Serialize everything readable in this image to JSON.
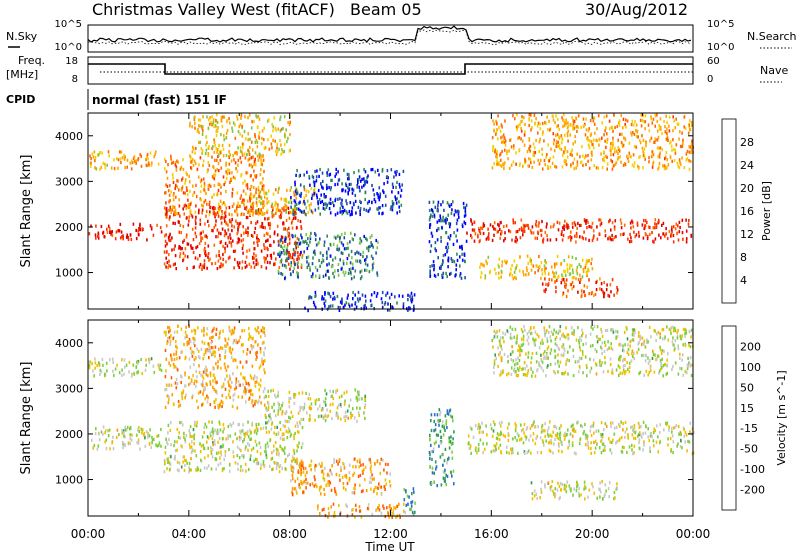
{
  "header": {
    "title": "Christmas Valley West (fitACF)",
    "beam": "Beam 05",
    "date": "30/Aug/2012"
  },
  "left_labels": {
    "nsky": "N.Sky",
    "freq_line1": "Freq.",
    "freq_line2": "[MHz]",
    "cpid": "CPID"
  },
  "right_labels": {
    "nsearch": "N.Search",
    "nave": "Nave"
  },
  "noise_panel": {
    "left_ticks": [
      "10^5",
      "10^0"
    ],
    "right_ticks": [
      "10^5",
      "10^0"
    ]
  },
  "freq_panel": {
    "left_ticks": [
      "18",
      "8"
    ],
    "right_ticks": [
      "60",
      "0"
    ]
  },
  "cpid_text": "normal (fast) 151 IF",
  "x_axis": {
    "label": "Time UT",
    "ticks": [
      "00:00",
      "04:00",
      "08:00",
      "12:00",
      "16:00",
      "20:00",
      "00:00"
    ]
  },
  "colors": {
    "power_scale": [
      "#0000ff",
      "#1a4fa8",
      "#2e8b57",
      "#7ac943",
      "#f5d000",
      "#ffa500",
      "#ff6a00",
      "#ff3300",
      "#e00000"
    ],
    "velocity_scale": [
      "#1a3fbf",
      "#2a6fd0",
      "#2f9a55",
      "#7ccf3c",
      "#c8c8c8",
      "#f0c000",
      "#ff9a00",
      "#ff5a00",
      "#ff0000"
    ]
  },
  "chart_data": [
    {
      "type": "heatmap",
      "panel": "power",
      "ylabel": "Slant Range [km]",
      "xlabel": "Time UT",
      "x_ticks": [
        "00:00",
        "04:00",
        "08:00",
        "12:00",
        "16:00",
        "20:00",
        "00:00"
      ],
      "xlim_hours": [
        0,
        24
      ],
      "ylim": [
        200,
        4500
      ],
      "y_ticks": [
        1000,
        2000,
        3000,
        4000
      ],
      "colorbar": {
        "label": "Power [dB]",
        "ticks": [
          "28",
          "24",
          "20",
          "16",
          "12",
          "8",
          "4"
        ],
        "range": [
          0,
          30
        ]
      },
      "blobs": [
        {
          "x": [
            0.0,
            2.9
          ],
          "y": [
            1750,
            2100
          ],
          "level": 0.92
        },
        {
          "x": [
            0.0,
            2.9
          ],
          "y": [
            3300,
            3700
          ],
          "level": 0.6
        },
        {
          "x": [
            3.0,
            8.5
          ],
          "y": [
            1100,
            2500
          ],
          "level": 0.85
        },
        {
          "x": [
            3.0,
            7.0
          ],
          "y": [
            2300,
            3600
          ],
          "level": 0.65
        },
        {
          "x": [
            4.0,
            8.0
          ],
          "y": [
            3600,
            4500
          ],
          "level": 0.55
        },
        {
          "x": [
            6.5,
            9.0
          ],
          "y": [
            2300,
            2900
          ],
          "level": 0.55
        },
        {
          "x": [
            7.5,
            11.5
          ],
          "y": [
            900,
            1900
          ],
          "level": 0.25
        },
        {
          "x": [
            8.0,
            12.5
          ],
          "y": [
            2300,
            3300
          ],
          "level": 0.12
        },
        {
          "x": [
            8.5,
            13.0
          ],
          "y": [
            200,
            600
          ],
          "level": 0.1
        },
        {
          "x": [
            13.5,
            15.0
          ],
          "y": [
            900,
            2600
          ],
          "level": 0.12
        },
        {
          "x": [
            15.0,
            24.0
          ],
          "y": [
            1700,
            2200
          ],
          "level": 0.88
        },
        {
          "x": [
            15.5,
            20.0
          ],
          "y": [
            900,
            1400
          ],
          "level": 0.55
        },
        {
          "x": [
            18.0,
            21.0
          ],
          "y": [
            500,
            900
          ],
          "level": 0.8
        },
        {
          "x": [
            16.0,
            24.0
          ],
          "y": [
            3300,
            4500
          ],
          "level": 0.62
        }
      ]
    },
    {
      "type": "heatmap",
      "panel": "velocity",
      "ylabel": "Slant Range [km]",
      "xlabel": "Time UT",
      "x_ticks": [
        "00:00",
        "04:00",
        "08:00",
        "12:00",
        "16:00",
        "20:00",
        "00:00"
      ],
      "xlim_hours": [
        0,
        24
      ],
      "ylim": [
        200,
        4500
      ],
      "y_ticks": [
        1000,
        2000,
        3000,
        4000
      ],
      "colorbar": {
        "label": "Velocity [m s^-1]",
        "ticks": [
          "200",
          "100",
          "50",
          "15",
          "-15",
          "-50",
          "-100",
          "-200"
        ],
        "range": [
          -250,
          250
        ]
      },
      "blobs": [
        {
          "x": [
            0.0,
            2.9
          ],
          "y": [
            1700,
            2200
          ],
          "level": 0.5
        },
        {
          "x": [
            0.0,
            2.9
          ],
          "y": [
            3300,
            3700
          ],
          "level": 0.5
        },
        {
          "x": [
            3.0,
            8.5
          ],
          "y": [
            1200,
            2300
          ],
          "level": 0.5
        },
        {
          "x": [
            3.0,
            7.0
          ],
          "y": [
            2600,
            4400
          ],
          "level": 0.65
        },
        {
          "x": [
            7.0,
            11.0
          ],
          "y": [
            2300,
            3000
          ],
          "level": 0.5
        },
        {
          "x": [
            8.0,
            12.0
          ],
          "y": [
            700,
            1500
          ],
          "level": 0.68
        },
        {
          "x": [
            9.0,
            12.5
          ],
          "y": [
            200,
            500
          ],
          "level": 0.7
        },
        {
          "x": [
            12.5,
            13.0
          ],
          "y": [
            200,
            900
          ],
          "level": 0.3
        },
        {
          "x": [
            13.5,
            14.5
          ],
          "y": [
            900,
            2600
          ],
          "level": 0.3
        },
        {
          "x": [
            15.0,
            24.0
          ],
          "y": [
            1600,
            2300
          ],
          "level": 0.5
        },
        {
          "x": [
            16.0,
            24.0
          ],
          "y": [
            3300,
            4400
          ],
          "level": 0.5
        },
        {
          "x": [
            17.5,
            21.0
          ],
          "y": [
            600,
            1000
          ],
          "level": 0.5
        }
      ]
    }
  ]
}
